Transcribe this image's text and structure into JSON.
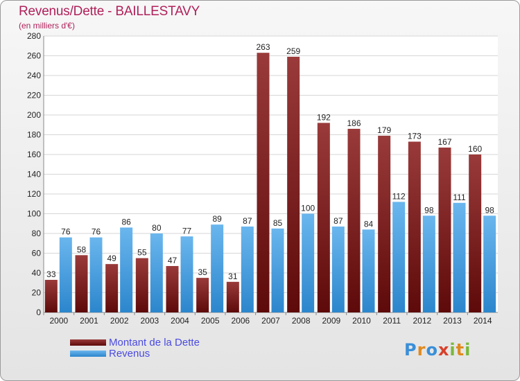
{
  "title": "Revenus/Dette - BAILLESTAVY",
  "subtitle": "(en milliers d'€)",
  "legend": {
    "dette": "Montant de la Dette",
    "revenus": "Revenus"
  },
  "logo": {
    "text": "Proxiti"
  },
  "colors": {
    "dette_top": "#9a3a3a",
    "dette_bottom": "#5e0a0a",
    "revenus_top": "#6ab6ee",
    "revenus_bottom": "#2c86cc",
    "title": "#b0205a",
    "legend_text": "#4a4ae0"
  },
  "chart_data": {
    "type": "bar",
    "title": "Revenus/Dette - BAILLESTAVY",
    "subtitle": "(en milliers d'€)",
    "categories": [
      "2000",
      "2001",
      "2002",
      "2003",
      "2004",
      "2005",
      "2006",
      "2007",
      "2008",
      "2009",
      "2010",
      "2011",
      "2012",
      "2013",
      "2014"
    ],
    "series": [
      {
        "name": "Montant de la Dette",
        "values": [
          33,
          58,
          49,
          55,
          47,
          35,
          31,
          263,
          259,
          192,
          186,
          179,
          173,
          167,
          160
        ]
      },
      {
        "name": "Revenus",
        "values": [
          76,
          76,
          86,
          80,
          77,
          89,
          87,
          85,
          100,
          87,
          84,
          112,
          98,
          111,
          98
        ]
      }
    ],
    "ylim": [
      0,
      280
    ],
    "yticks": [
      0,
      20,
      40,
      60,
      80,
      100,
      120,
      140,
      160,
      180,
      200,
      220,
      240,
      260,
      280
    ],
    "grid": true,
    "legend_position": "bottom-left"
  }
}
